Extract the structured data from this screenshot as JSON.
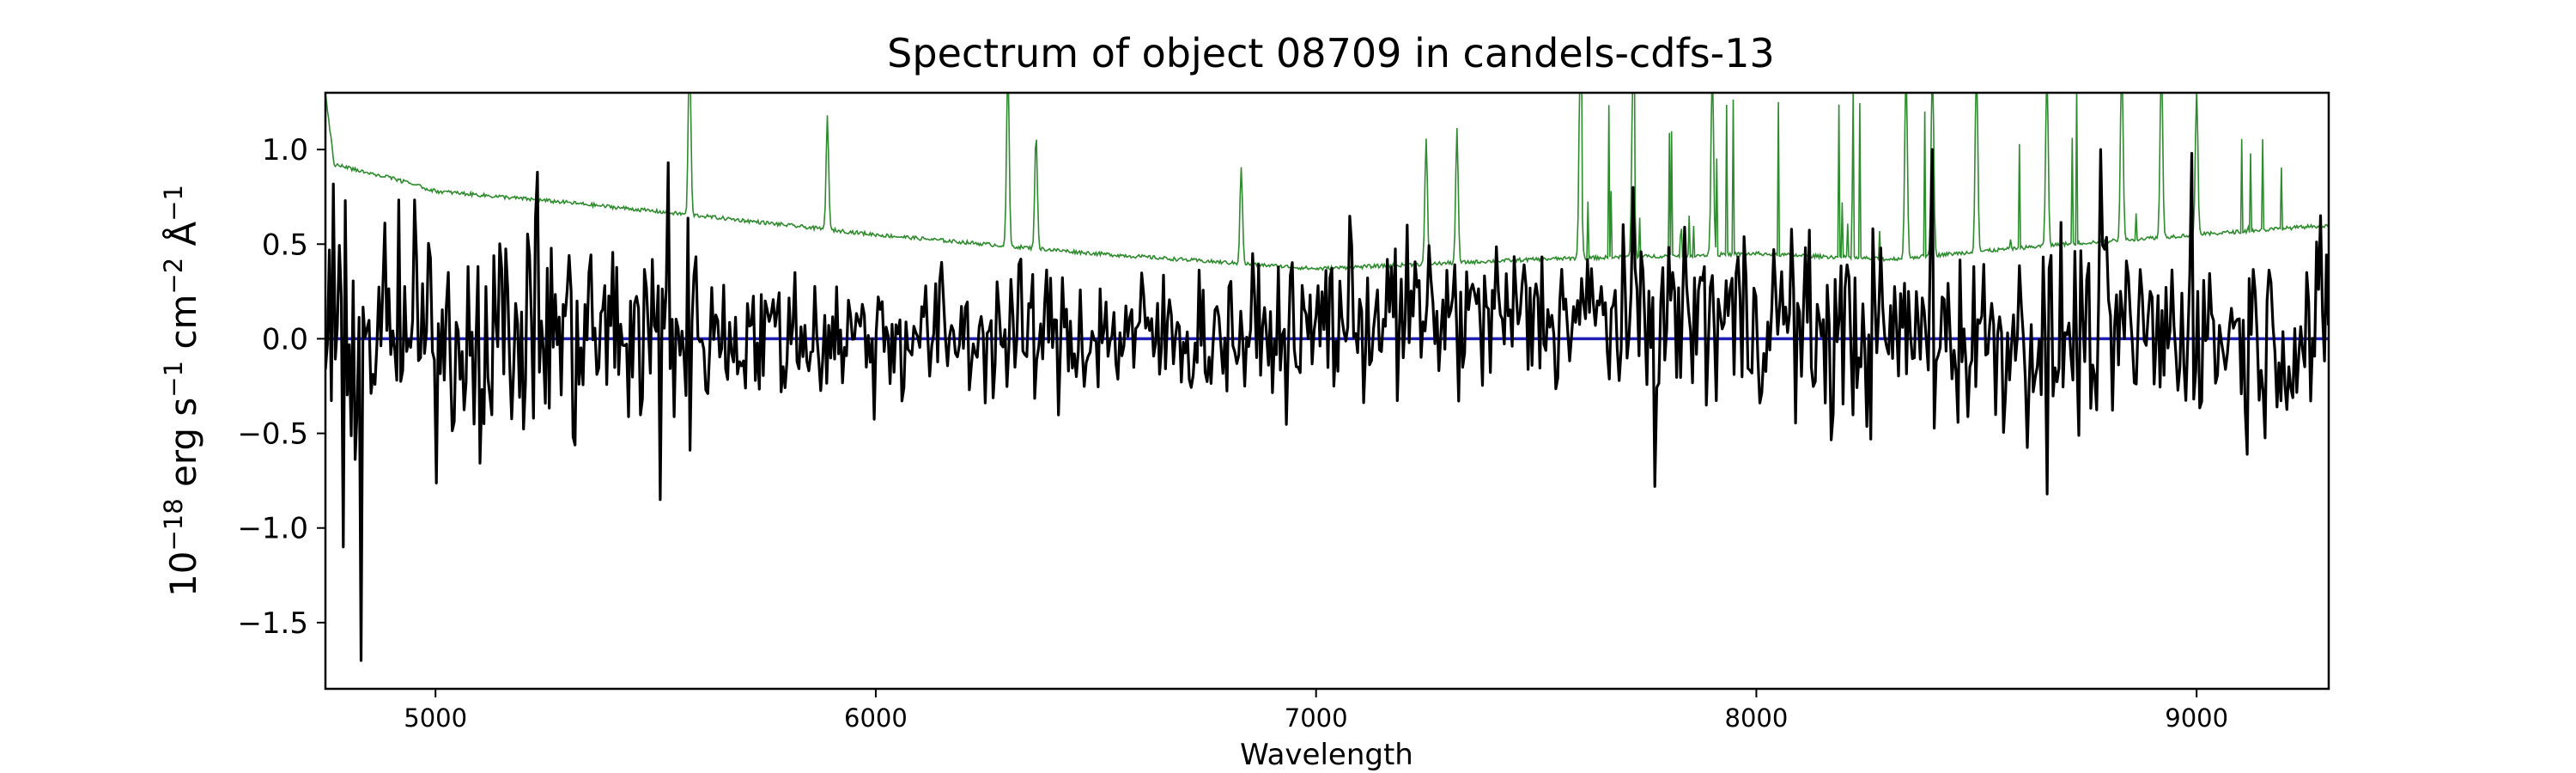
{
  "chart_data": {
    "type": "line",
    "title": "Spectrum of object 08709 in candels-cdfs-13",
    "xlabel": "Wavelength",
    "ylabel": {
      "prefix": "10",
      "prefix_exp": "−18",
      "unit_a": " erg s",
      "unit_a_exp": "−1",
      "unit_b": " cm",
      "unit_b_exp": "−2",
      "unit_c": " Å",
      "unit_c_exp": "−1"
    },
    "xlim": [
      4750,
      9300
    ],
    "ylim": [
      -1.85,
      1.3
    ],
    "x_ticks": [
      5000,
      6000,
      7000,
      8000,
      9000
    ],
    "x_tick_labels": [
      "5000",
      "6000",
      "7000",
      "8000",
      "9000"
    ],
    "y_ticks": [
      -1.5,
      -1.0,
      -0.5,
      0.0,
      0.5,
      1.0
    ],
    "y_tick_labels": [
      "−1.5",
      "−1.0",
      "−0.5",
      "0.0",
      "0.5",
      "1.0"
    ],
    "grid": false,
    "series": [
      {
        "color": "#2e8b2e",
        "x_range": [
          4750,
          9300
        ],
        "continuum_points": [
          [
            4750,
            1.3
          ],
          [
            4770,
            0.92
          ],
          [
            4900,
            0.85
          ],
          [
            5000,
            0.78
          ],
          [
            5300,
            0.72
          ],
          [
            5600,
            0.65
          ],
          [
            6000,
            0.55
          ],
          [
            6500,
            0.45
          ],
          [
            7000,
            0.37
          ],
          [
            7500,
            0.42
          ],
          [
            8000,
            0.45
          ],
          [
            8300,
            0.42
          ],
          [
            8700,
            0.5
          ],
          [
            9000,
            0.55
          ],
          [
            9300,
            0.6
          ]
        ],
        "emission_lines": [
          [
            5577,
            1.3
          ],
          [
            5890,
            0.95
          ],
          [
            6300,
            1.3
          ],
          [
            6364,
            0.9
          ],
          [
            6830,
            0.75
          ],
          [
            7250,
            0.9
          ],
          [
            7320,
            0.95
          ],
          [
            7600,
            1.3
          ],
          [
            7720,
            1.3
          ],
          [
            7900,
            1.3
          ],
          [
            8340,
            1.3
          ],
          [
            8400,
            1.3
          ],
          [
            8500,
            1.3
          ],
          [
            8660,
            1.25
          ],
          [
            8830,
            1.3
          ],
          [
            8920,
            1.3
          ],
          [
            9000,
            1.1
          ]
        ]
      },
      {
        "color": "#000000",
        "x_range": [
          4750,
          9300
        ],
        "anchor_points": [
          [
            4830,
            -1.7
          ],
          [
            4790,
            -1.1
          ],
          [
            5230,
            0.88
          ],
          [
            5530,
            0.93
          ],
          [
            5510,
            -0.85
          ],
          [
            7720,
            0.8
          ],
          [
            7770,
            -0.78
          ],
          [
            8400,
            1.0
          ],
          [
            8660,
            -0.82
          ],
          [
            8780,
            1.0
          ],
          [
            8990,
            0.98
          ]
        ]
      },
      {
        "color": "#1f1fb4",
        "x_range": [
          4750,
          9300
        ],
        "value": 0.0
      }
    ]
  }
}
